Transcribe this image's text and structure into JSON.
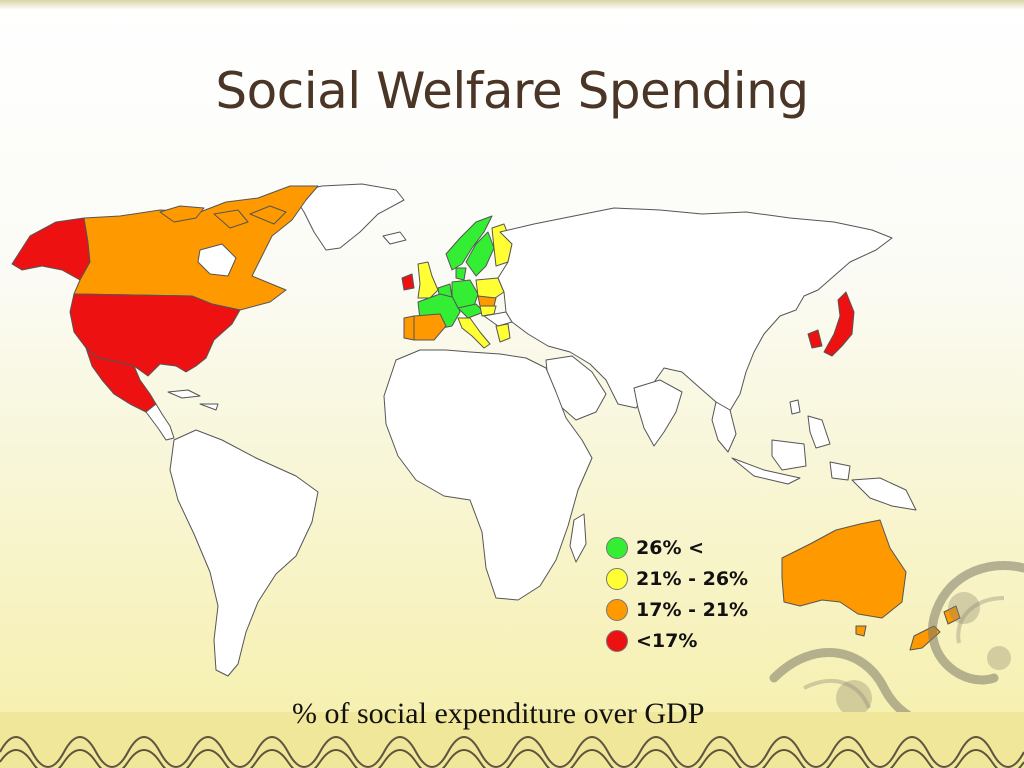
{
  "slide": {
    "title": "Social Welfare Spending",
    "caption": "% of social expenditure over GDP"
  },
  "legend": [
    {
      "label": "26% <",
      "color": "#33ee33"
    },
    {
      "label": "21% - 26%",
      "color": "#ffff33"
    },
    {
      "label": "17% - 21%",
      "color": "#ff9900"
    },
    {
      "label": "<17%",
      "color": "#ee1111"
    }
  ],
  "map": {
    "highlighted_regions": [
      {
        "name": "Alaska",
        "category": "<17%"
      },
      {
        "name": "Canada",
        "category": "17% - 21%"
      },
      {
        "name": "United States",
        "category": "<17%"
      },
      {
        "name": "Mexico",
        "category": "<17%"
      },
      {
        "name": "Ireland",
        "category": "<17%"
      },
      {
        "name": "United Kingdom",
        "category": "21% - 26%"
      },
      {
        "name": "Portugal",
        "category": "17% - 21%"
      },
      {
        "name": "Spain",
        "category": "17% - 21%"
      },
      {
        "name": "France",
        "category": "26% <"
      },
      {
        "name": "Germany",
        "category": "26% <"
      },
      {
        "name": "Sweden",
        "category": "26% <"
      },
      {
        "name": "Norway",
        "category": "26% <"
      },
      {
        "name": "Finland",
        "category": "21% - 26%"
      },
      {
        "name": "Poland",
        "category": "21% - 26%"
      },
      {
        "name": "Austria",
        "category": "26% <"
      },
      {
        "name": "Hungary",
        "category": "21% - 26%"
      },
      {
        "name": "Slovakia",
        "category": "17% - 21%"
      },
      {
        "name": "Italy",
        "category": "21% - 26%"
      },
      {
        "name": "Greece",
        "category": "21% - 26%"
      },
      {
        "name": "Japan",
        "category": "<17%"
      },
      {
        "name": "South Korea",
        "category": "<17%"
      },
      {
        "name": "Australia",
        "category": "17% - 21%"
      },
      {
        "name": "New Zealand",
        "category": "17% - 21%"
      }
    ]
  }
}
